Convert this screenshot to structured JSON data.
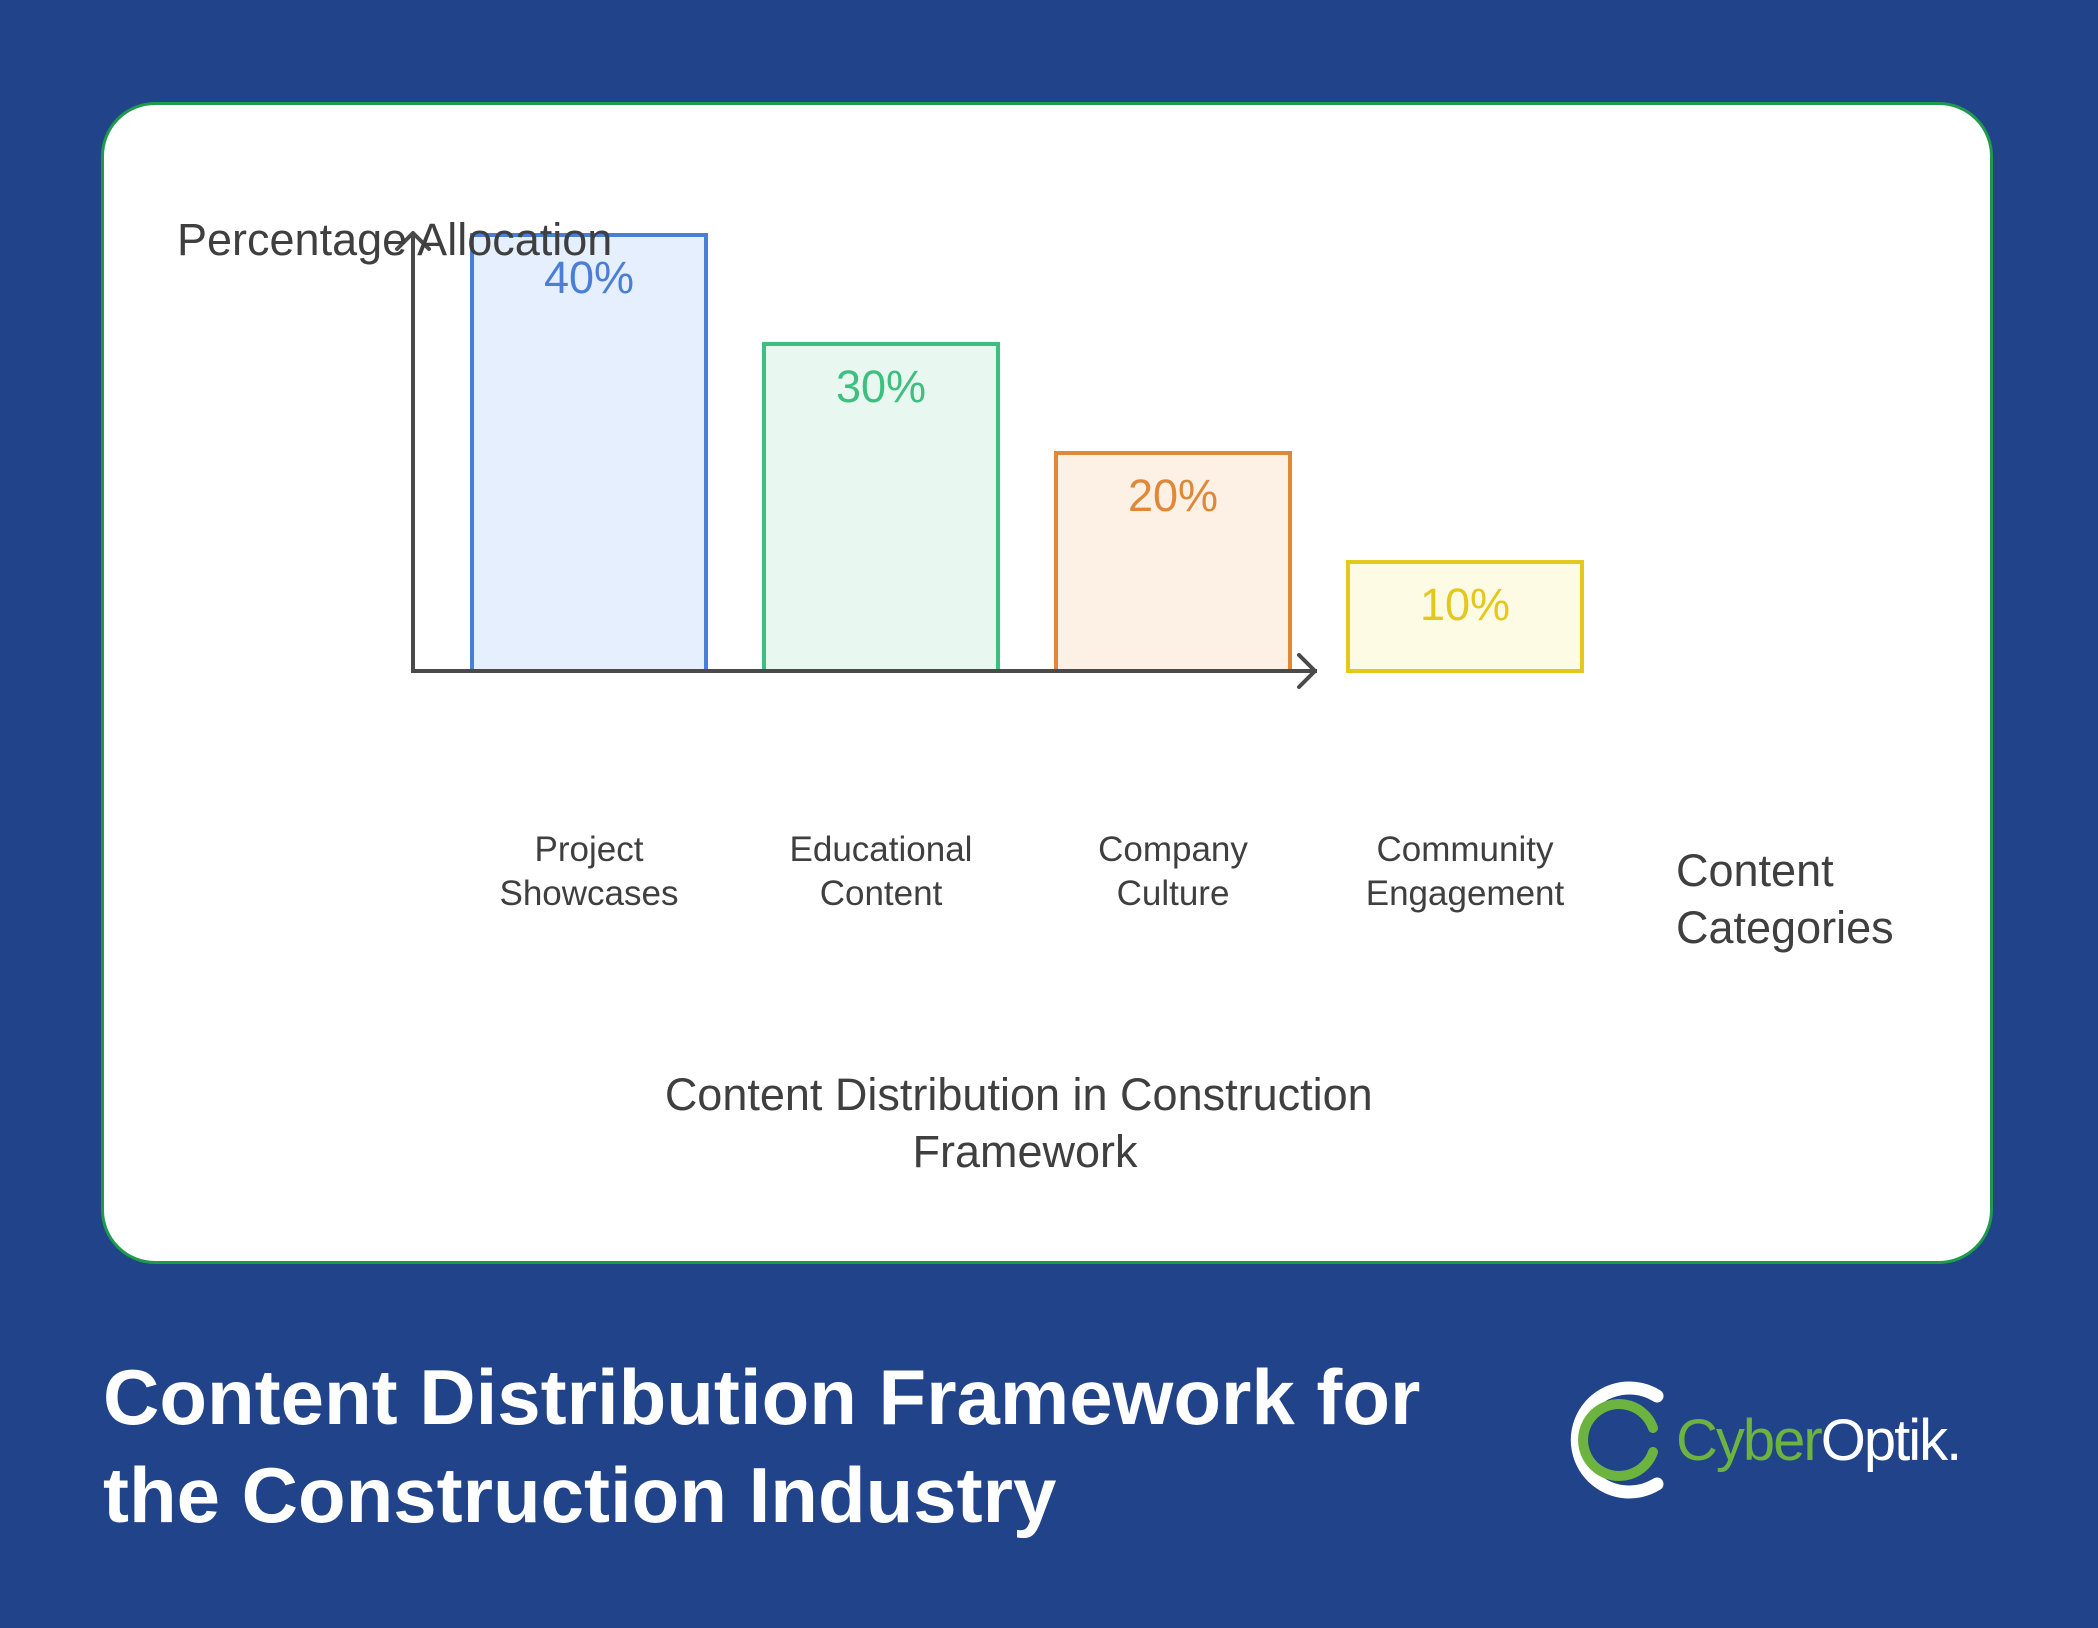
{
  "chart_data": {
    "type": "bar",
    "title": "Content Distribution in Construction Framework",
    "title_lines": [
      "Content Distribution in Construction",
      "Framework"
    ],
    "ylabel": "Percentage Allocation",
    "xlabel_lines": [
      "Content",
      "Categories"
    ],
    "ylim": [
      0,
      40
    ],
    "grid": false,
    "legend": "none",
    "categories": [
      {
        "lines": [
          "Project",
          "Showcases"
        ]
      },
      {
        "lines": [
          "Educational",
          "Content"
        ]
      },
      {
        "lines": [
          "Company",
          "Culture"
        ]
      },
      {
        "lines": [
          "Community",
          "Engagement"
        ]
      }
    ],
    "values": [
      40,
      30,
      20,
      10
    ],
    "value_labels": [
      "40%",
      "30%",
      "20%",
      "10%"
    ],
    "bar_stroke_colors": [
      "#4a7fd8",
      "#3dbf7f",
      "#e08838",
      "#e5c81e"
    ],
    "bar_fill_colors": [
      "#e5effd",
      "#e8f8f0",
      "#fdf0e4",
      "#fefbe5"
    ],
    "axis_color": "#4a4a4a",
    "text_color": "#3f3f3f"
  },
  "footer": {
    "title_lines": [
      "Content Distribution Framework for",
      "the Construction Industry"
    ]
  },
  "logo": {
    "text_a": "Cyber",
    "text_b": "Optik.",
    "icon": "ring-logo-icon",
    "green": "#6db33f",
    "white": "#ffffff"
  }
}
